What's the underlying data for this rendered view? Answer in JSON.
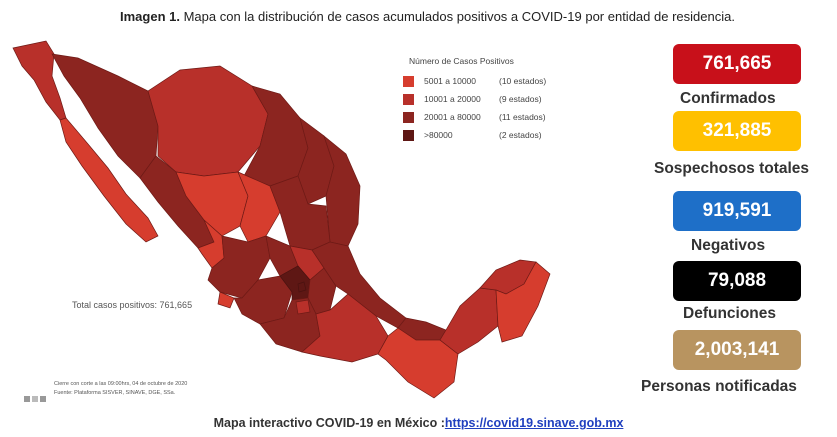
{
  "caption": {
    "bold": "Imagen 1.",
    "text": " Mapa con la distribución de casos acumulados positivos a COVID-19 por entidad de residencia."
  },
  "legend": {
    "title": "Número de Casos Positivos",
    "items": [
      {
        "range": "5001 a  10000",
        "count": "(10 estados)",
        "color": "#d63d2e"
      },
      {
        "range": "10001 a  20000",
        "count": "(9 estados)",
        "color": "#b8302a"
      },
      {
        "range": "20001 a  80000",
        "count": "(11 estados)",
        "color": "#8c2520"
      },
      {
        "range": ">80000",
        "count": "(2 estados)",
        "color": "#5e1714"
      }
    ]
  },
  "map": {
    "total_label": "Total casos positivos: 761,665",
    "footnote_line1": "Cierre con corte a las 09:00hrs, 04 de octubre de 2020",
    "footnote_line2": "Fuente: Plataforma SISVER, SINAVE, DGE, SSa."
  },
  "stats": [
    {
      "value": "761,665",
      "label": "Confirmados",
      "color": "#c8101a"
    },
    {
      "value": "321,885",
      "label": "Sospechosos totales",
      "color": "#ffc000"
    },
    {
      "value": "919,591",
      "label": "Negativos",
      "color": "#1e6fc8"
    },
    {
      "value": "79,088",
      "label": "Defunciones",
      "color": "#000000"
    },
    {
      "value": "2,003,141",
      "label": "Personas notificadas",
      "color": "#b89460"
    }
  ],
  "footer": {
    "label": "Mapa interactivo COVID-19 en México :",
    "link": "https://covid19.sinave.gob.mx"
  }
}
